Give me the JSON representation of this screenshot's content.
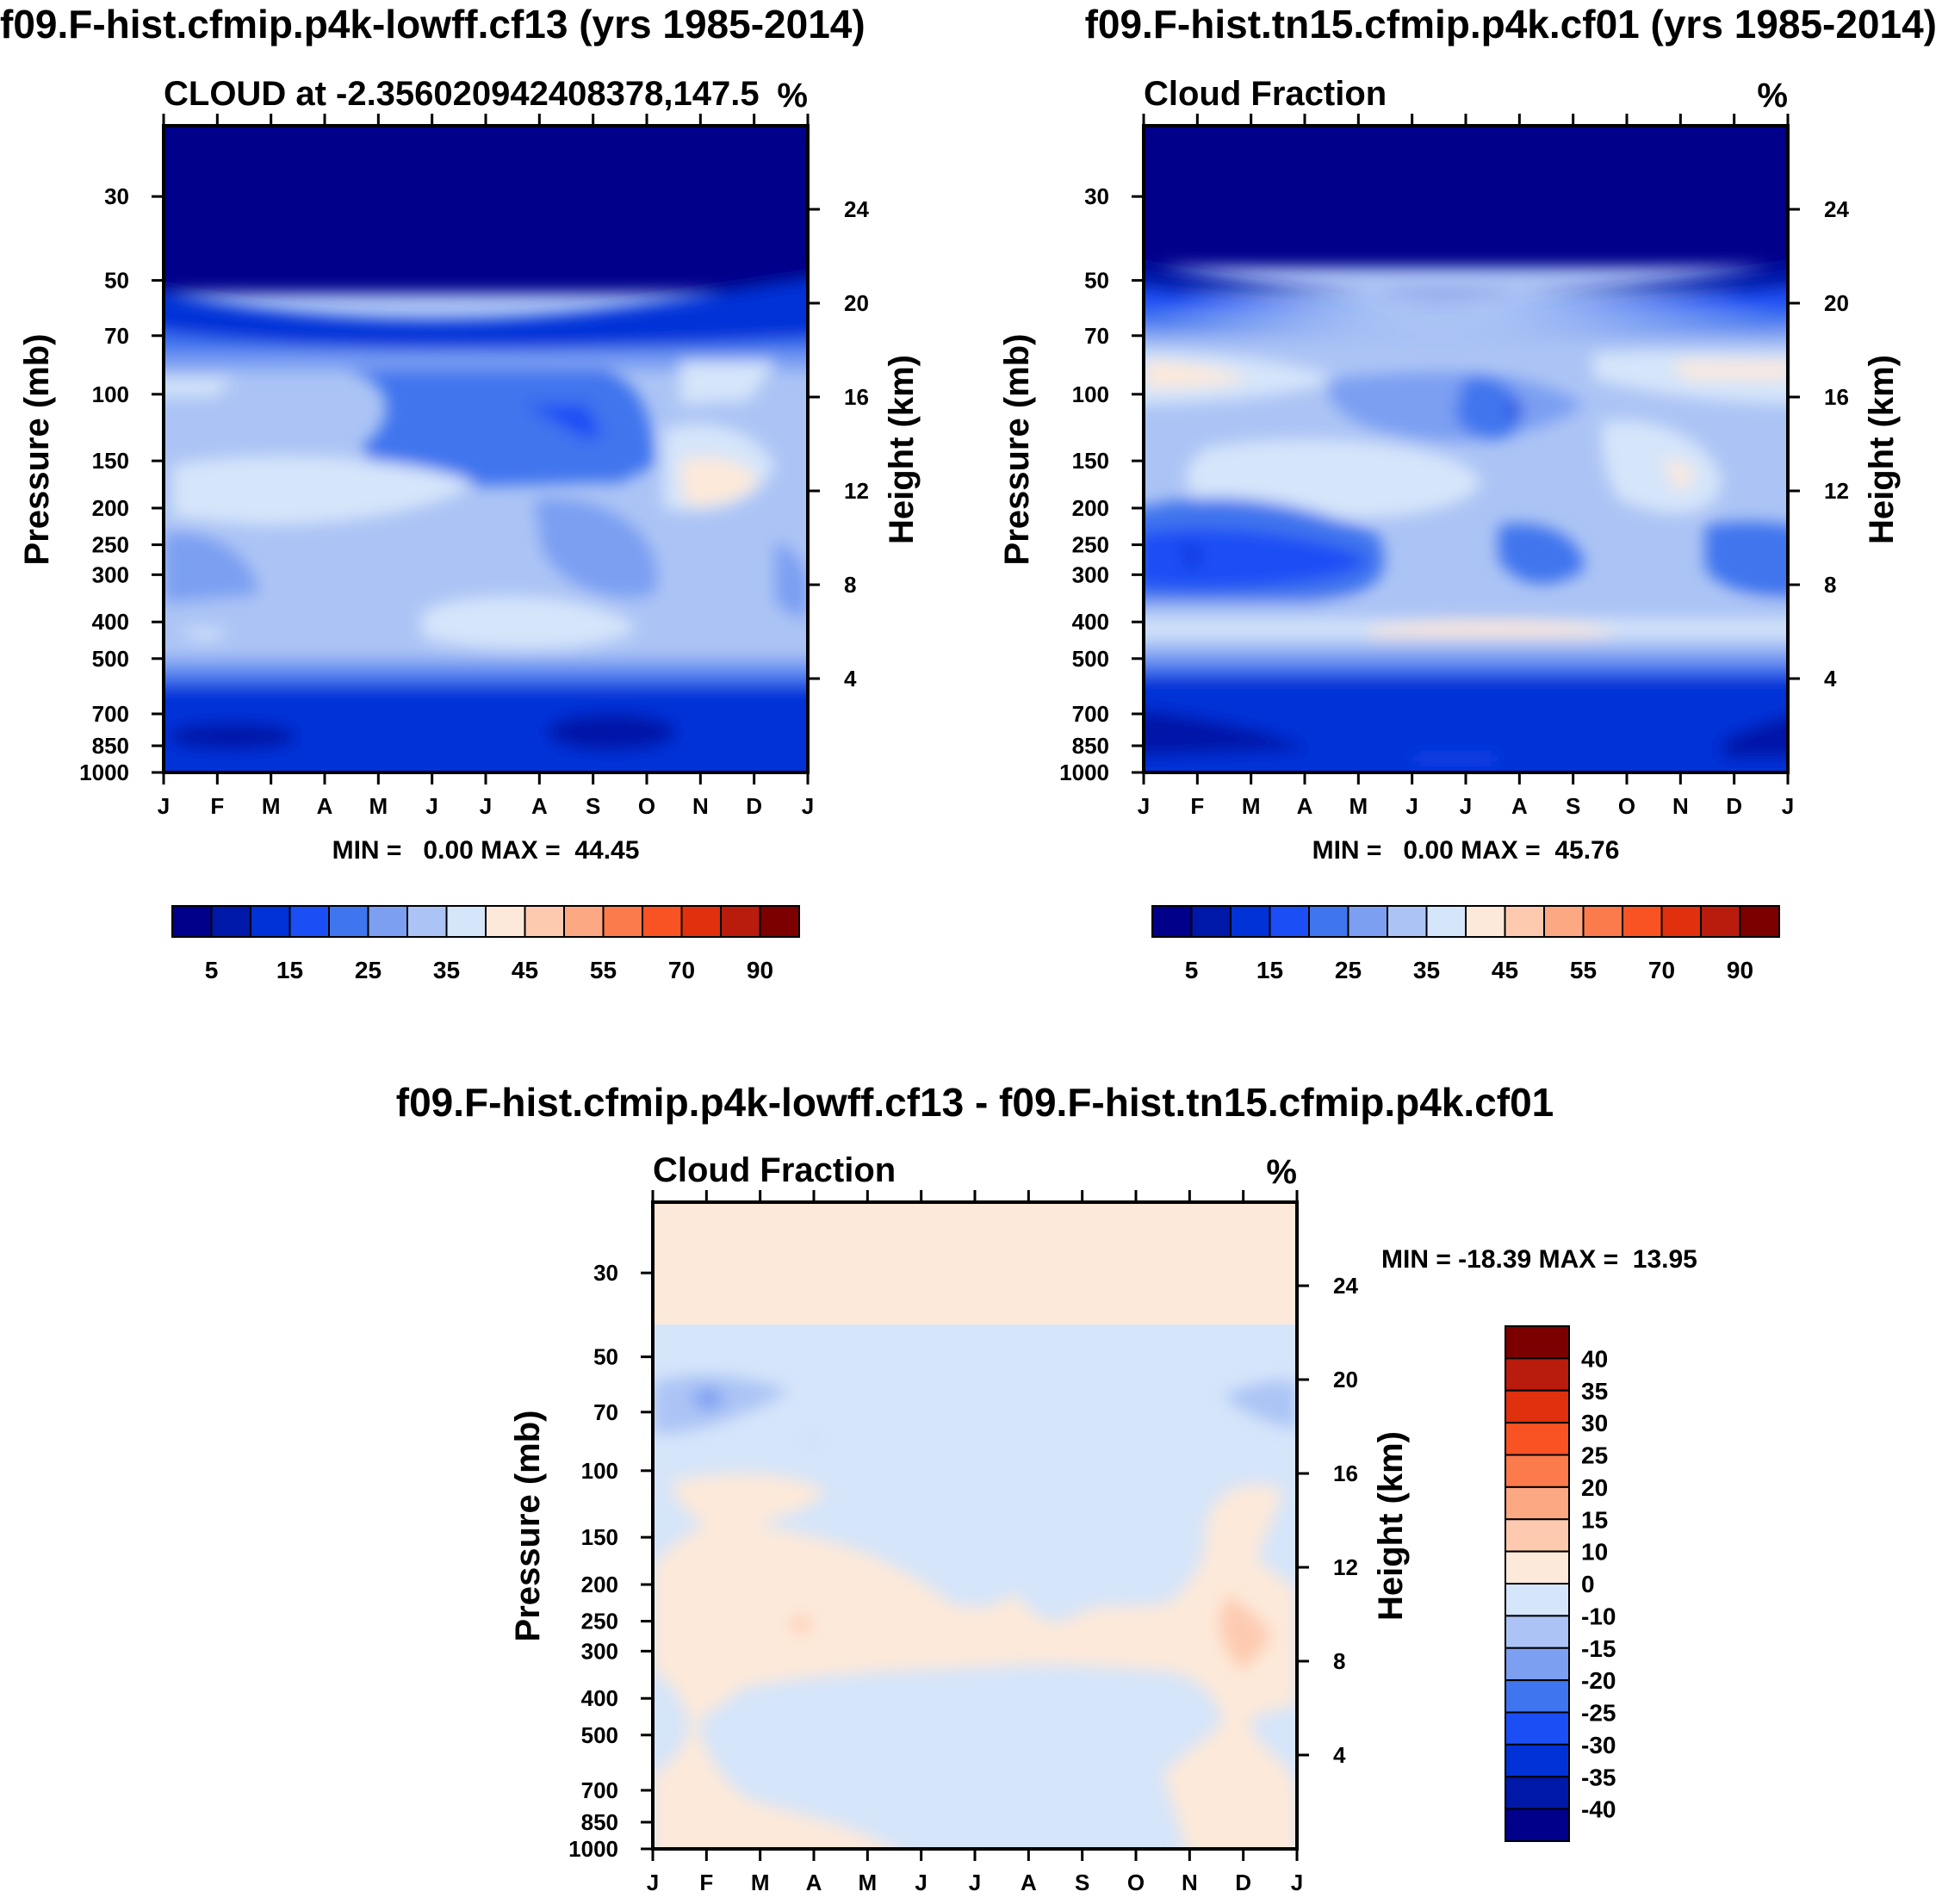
{
  "chart_data": [
    {
      "type": "heatmap",
      "title": "f09.F-hist.cfmip.p4k-lowff.cf13 (yrs 1985-2014)",
      "subtitle": "CLOUD at -2.356020942408378,147.5",
      "units": "%",
      "xlabel": "",
      "ylabel": "Pressure (mb)",
      "ylabel_right": "Height (km)",
      "x_ticks": [
        "J",
        "F",
        "M",
        "A",
        "M",
        "J",
        "J",
        "A",
        "S",
        "O",
        "N",
        "D",
        "J"
      ],
      "y_ticks": [
        "30",
        "50",
        "70",
        "100",
        "150",
        "200",
        "250",
        "300",
        "400",
        "500",
        "700",
        "850",
        "1000"
      ],
      "y_ticks_right": [
        "24",
        "20",
        "16",
        "12",
        "8",
        "4"
      ],
      "min_max_text": "MIN =   0.00 MAX =  44.45",
      "min": 0.0,
      "max": 44.45,
      "colorbar_labels": [
        "5",
        "15",
        "25",
        "35",
        "45",
        "55",
        "70",
        "90"
      ],
      "colorbar_levels": [
        0,
        5,
        10,
        15,
        20,
        25,
        30,
        35,
        40,
        45,
        50,
        55,
        60,
        70,
        80,
        90,
        100
      ]
    },
    {
      "type": "heatmap",
      "title": "f09.F-hist.tn15.cfmip.p4k.cf01 (yrs 1985-2014)",
      "subtitle": "Cloud Fraction",
      "units": "%",
      "xlabel": "",
      "ylabel": "Pressure (mb)",
      "ylabel_right": "Height (km)",
      "x_ticks": [
        "J",
        "F",
        "M",
        "A",
        "M",
        "J",
        "J",
        "A",
        "S",
        "O",
        "N",
        "D",
        "J"
      ],
      "y_ticks": [
        "30",
        "50",
        "70",
        "100",
        "150",
        "200",
        "250",
        "300",
        "400",
        "500",
        "700",
        "850",
        "1000"
      ],
      "y_ticks_right": [
        "24",
        "20",
        "16",
        "12",
        "8",
        "4"
      ],
      "min_max_text": "MIN =   0.00 MAX =  45.76",
      "min": 0.0,
      "max": 45.76,
      "colorbar_labels": [
        "5",
        "15",
        "25",
        "35",
        "45",
        "55",
        "70",
        "90"
      ],
      "colorbar_levels": [
        0,
        5,
        10,
        15,
        20,
        25,
        30,
        35,
        40,
        45,
        50,
        55,
        60,
        70,
        80,
        90,
        100
      ]
    },
    {
      "type": "heatmap",
      "title": "f09.F-hist.cfmip.p4k-lowff.cf13 - f09.F-hist.tn15.cfmip.p4k.cf01",
      "subtitle": "Cloud Fraction",
      "units": "%",
      "xlabel": "",
      "ylabel": "Pressure (mb)",
      "ylabel_right": "Height (km)",
      "x_ticks": [
        "J",
        "F",
        "M",
        "A",
        "M",
        "J",
        "J",
        "A",
        "S",
        "O",
        "N",
        "D",
        "J"
      ],
      "y_ticks": [
        "30",
        "50",
        "70",
        "100",
        "150",
        "200",
        "250",
        "300",
        "400",
        "500",
        "700",
        "850",
        "1000"
      ],
      "y_ticks_right": [
        "24",
        "20",
        "16",
        "12",
        "8",
        "4"
      ],
      "min_max_text": "MIN = -18.39 MAX =  13.95",
      "min": -18.39,
      "max": 13.95,
      "colorbar_labels": [
        "40",
        "35",
        "30",
        "25",
        "20",
        "15",
        "10",
        "0",
        "-10",
        "-15",
        "-20",
        "-25",
        "-30",
        "-35",
        "-40"
      ],
      "colorbar_levels": [
        40,
        35,
        30,
        25,
        20,
        15,
        10,
        0,
        -10,
        -15,
        -20,
        -25,
        -30,
        -35,
        -40
      ]
    }
  ],
  "colors": {
    "abs_palette": [
      "#00008a",
      "#0018a8",
      "#0032d8",
      "#1c4ef5",
      "#3f75ee",
      "#7c9ff2",
      "#acc4f5",
      "#d5e5fa",
      "#fde9d9",
      "#fdcab0",
      "#fca883",
      "#fc7b4c",
      "#fa5323",
      "#e0300d",
      "#b91c0c",
      "#7d0000"
    ],
    "diff_palette_top_to_bottom": [
      "#7d0000",
      "#b91c0c",
      "#e0300d",
      "#fa5323",
      "#fc7b4c",
      "#fca883",
      "#fdcab0",
      "#fde9d9",
      "#d5e5fa",
      "#acc4f5",
      "#7c9ff2",
      "#3f75ee",
      "#1c4ef5",
      "#0032d8",
      "#0018a8",
      "#00008a"
    ]
  }
}
